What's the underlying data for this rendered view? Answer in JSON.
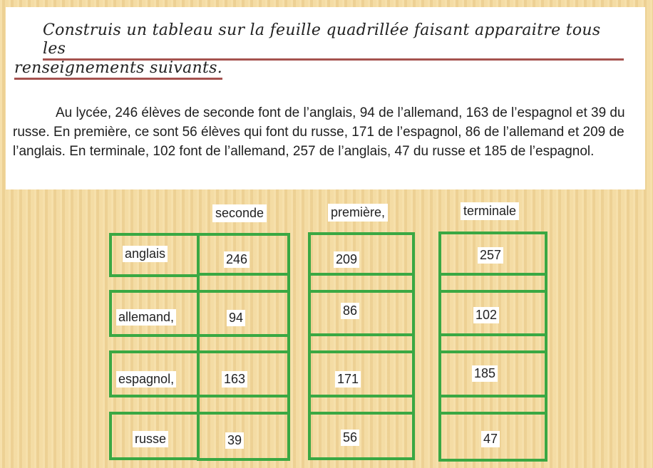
{
  "instruction": {
    "line1": "Construis un tableau sur la feuille quadrillée faisant apparaitre tous les",
    "line2": "renseignements suivants."
  },
  "paragraph": "Au lycée, 246 élèves de seconde font de l’anglais, 94 de l’allemand, 163 de l’espagnol et 39 du russe. En première, ce sont 56 élèves qui font du russe, 171 de l’espagnol, 86 de l’allemand et 209 de l’anglais. En terminale, 102 font de l’allemand, 257 de l’anglais, 47 du russe et 185 de l’espagnol.",
  "table": {
    "headers": [
      "seconde",
      "première,",
      "terminale"
    ],
    "languages": [
      "anglais",
      "allemand,",
      "espagnol,",
      "russe"
    ],
    "seconde": [
      "246",
      "94",
      "163",
      "39"
    ],
    "premiere": [
      "209",
      "86",
      "171",
      "56"
    ],
    "terminale": [
      "257",
      "102",
      "185",
      "47"
    ]
  },
  "colors": {
    "box_border": "#3aa843",
    "underline": "#a5524f",
    "background": "#f1d79c"
  }
}
